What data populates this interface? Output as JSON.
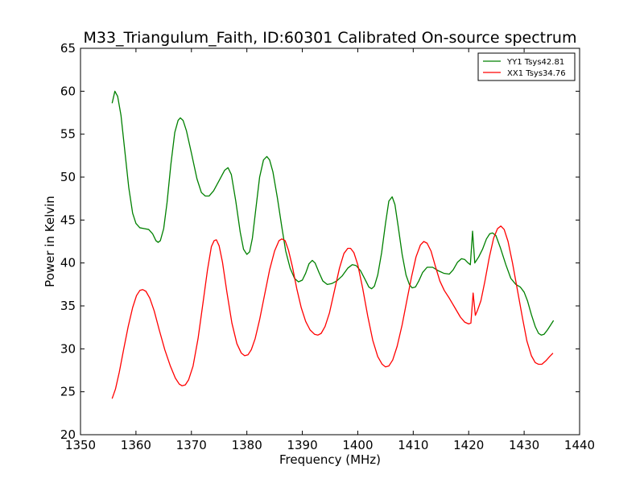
{
  "chart_data": {
    "type": "line",
    "title": "M33_Triangulum_Faith, ID:60301 Calibrated On-source spectrum",
    "xlabel": "Frequency (MHz)",
    "ylabel": "Power in Kelvin",
    "xlim": [
      1350,
      1440
    ],
    "ylim": [
      20,
      65
    ],
    "x_ticks": [
      1350,
      1360,
      1370,
      1380,
      1390,
      1400,
      1410,
      1420,
      1430,
      1440
    ],
    "y_ticks": [
      20,
      25,
      30,
      35,
      40,
      45,
      50,
      55,
      60,
      65
    ],
    "grid": false,
    "legend_position": "top-right",
    "series": [
      {
        "name": "YY1 Tsys42.81",
        "color": "#008000",
        "points": [
          [
            1355.7,
            58.6
          ],
          [
            1356.2,
            60.0
          ],
          [
            1356.7,
            59.4
          ],
          [
            1357.3,
            57.2
          ],
          [
            1358.0,
            53.0
          ],
          [
            1358.7,
            48.8
          ],
          [
            1359.4,
            45.8
          ],
          [
            1360.0,
            44.6
          ],
          [
            1360.7,
            44.1
          ],
          [
            1361.5,
            44.0
          ],
          [
            1362.3,
            43.9
          ],
          [
            1363.0,
            43.4
          ],
          [
            1363.6,
            42.6
          ],
          [
            1364.0,
            42.4
          ],
          [
            1364.4,
            42.6
          ],
          [
            1365.0,
            44.0
          ],
          [
            1365.6,
            47.0
          ],
          [
            1366.3,
            51.5
          ],
          [
            1367.0,
            55.2
          ],
          [
            1367.6,
            56.6
          ],
          [
            1368.0,
            56.9
          ],
          [
            1368.5,
            56.6
          ],
          [
            1369.1,
            55.4
          ],
          [
            1370.0,
            52.8
          ],
          [
            1371.0,
            49.8
          ],
          [
            1371.8,
            48.2
          ],
          [
            1372.5,
            47.8
          ],
          [
            1373.2,
            47.8
          ],
          [
            1374.0,
            48.4
          ],
          [
            1375.0,
            49.6
          ],
          [
            1376.0,
            50.8
          ],
          [
            1376.6,
            51.1
          ],
          [
            1377.2,
            50.3
          ],
          [
            1378.0,
            47.2
          ],
          [
            1378.8,
            43.6
          ],
          [
            1379.4,
            41.6
          ],
          [
            1380.0,
            41.0
          ],
          [
            1380.5,
            41.3
          ],
          [
            1381.0,
            42.9
          ],
          [
            1381.6,
            46.2
          ],
          [
            1382.3,
            50.0
          ],
          [
            1383.0,
            52.0
          ],
          [
            1383.6,
            52.4
          ],
          [
            1384.1,
            52.0
          ],
          [
            1384.7,
            50.6
          ],
          [
            1385.5,
            47.6
          ],
          [
            1386.3,
            44.2
          ],
          [
            1387.0,
            41.4
          ],
          [
            1387.8,
            39.4
          ],
          [
            1388.6,
            38.2
          ],
          [
            1389.3,
            37.8
          ],
          [
            1390.0,
            38.0
          ],
          [
            1390.6,
            38.8
          ],
          [
            1391.2,
            39.9
          ],
          [
            1391.8,
            40.3
          ],
          [
            1392.3,
            40.0
          ],
          [
            1393.0,
            38.9
          ],
          [
            1393.7,
            37.9
          ],
          [
            1394.5,
            37.5
          ],
          [
            1395.3,
            37.6
          ],
          [
            1396.2,
            37.9
          ],
          [
            1397.2,
            38.5
          ],
          [
            1398.2,
            39.4
          ],
          [
            1399.0,
            39.8
          ],
          [
            1399.7,
            39.7
          ],
          [
            1400.5,
            39.1
          ],
          [
            1401.3,
            38.1
          ],
          [
            1402.0,
            37.2
          ],
          [
            1402.5,
            37.0
          ],
          [
            1403.0,
            37.3
          ],
          [
            1403.6,
            38.6
          ],
          [
            1404.3,
            41.2
          ],
          [
            1405.0,
            44.6
          ],
          [
            1405.6,
            47.2
          ],
          [
            1406.2,
            47.7
          ],
          [
            1406.7,
            46.8
          ],
          [
            1407.3,
            44.2
          ],
          [
            1408.0,
            41.0
          ],
          [
            1408.7,
            38.6
          ],
          [
            1409.3,
            37.5
          ],
          [
            1409.8,
            37.1
          ],
          [
            1410.4,
            37.2
          ],
          [
            1411.0,
            37.9
          ],
          [
            1411.7,
            38.9
          ],
          [
            1412.5,
            39.5
          ],
          [
            1413.5,
            39.5
          ],
          [
            1414.5,
            39.1
          ],
          [
            1415.5,
            38.8
          ],
          [
            1416.5,
            38.7
          ],
          [
            1417.2,
            39.2
          ],
          [
            1418.0,
            40.1
          ],
          [
            1418.7,
            40.5
          ],
          [
            1419.3,
            40.4
          ],
          [
            1419.9,
            40.0
          ],
          [
            1420.3,
            39.8
          ],
          [
            1420.7,
            43.7
          ],
          [
            1421.1,
            40.0
          ],
          [
            1421.8,
            40.7
          ],
          [
            1422.5,
            41.6
          ],
          [
            1423.2,
            42.8
          ],
          [
            1423.8,
            43.4
          ],
          [
            1424.3,
            43.5
          ],
          [
            1424.9,
            43.2
          ],
          [
            1425.7,
            41.8
          ],
          [
            1426.7,
            39.8
          ],
          [
            1427.6,
            38.2
          ],
          [
            1428.5,
            37.5
          ],
          [
            1429.3,
            37.2
          ],
          [
            1430.0,
            36.6
          ],
          [
            1430.6,
            35.6
          ],
          [
            1431.3,
            34.0
          ],
          [
            1432.0,
            32.6
          ],
          [
            1432.6,
            31.8
          ],
          [
            1433.1,
            31.6
          ],
          [
            1433.6,
            31.7
          ],
          [
            1434.2,
            32.2
          ],
          [
            1434.8,
            32.8
          ],
          [
            1435.3,
            33.3
          ]
        ]
      },
      {
        "name": "XX1 Tsys34.76",
        "color": "#ff0000",
        "points": [
          [
            1355.7,
            24.2
          ],
          [
            1356.3,
            25.3
          ],
          [
            1357.0,
            27.3
          ],
          [
            1357.8,
            30.0
          ],
          [
            1358.6,
            32.6
          ],
          [
            1359.4,
            34.8
          ],
          [
            1360.1,
            36.2
          ],
          [
            1360.7,
            36.8
          ],
          [
            1361.2,
            36.9
          ],
          [
            1361.8,
            36.7
          ],
          [
            1362.5,
            35.9
          ],
          [
            1363.3,
            34.4
          ],
          [
            1364.2,
            32.2
          ],
          [
            1365.2,
            29.9
          ],
          [
            1366.2,
            28.0
          ],
          [
            1367.1,
            26.6
          ],
          [
            1367.8,
            25.9
          ],
          [
            1368.3,
            25.7
          ],
          [
            1368.9,
            25.8
          ],
          [
            1369.5,
            26.4
          ],
          [
            1370.3,
            28.0
          ],
          [
            1371.2,
            31.2
          ],
          [
            1372.1,
            35.4
          ],
          [
            1372.9,
            39.2
          ],
          [
            1373.6,
            41.9
          ],
          [
            1374.1,
            42.6
          ],
          [
            1374.5,
            42.7
          ],
          [
            1375.0,
            42.0
          ],
          [
            1375.6,
            40.1
          ],
          [
            1376.4,
            36.6
          ],
          [
            1377.3,
            33.0
          ],
          [
            1378.2,
            30.6
          ],
          [
            1379.0,
            29.5
          ],
          [
            1379.6,
            29.2
          ],
          [
            1380.2,
            29.3
          ],
          [
            1380.8,
            29.9
          ],
          [
            1381.5,
            31.2
          ],
          [
            1382.3,
            33.4
          ],
          [
            1383.2,
            36.3
          ],
          [
            1384.1,
            39.2
          ],
          [
            1385.0,
            41.4
          ],
          [
            1385.8,
            42.6
          ],
          [
            1386.3,
            42.8
          ],
          [
            1386.9,
            42.6
          ],
          [
            1387.5,
            41.5
          ],
          [
            1388.2,
            39.6
          ],
          [
            1389.0,
            37.0
          ],
          [
            1389.8,
            34.8
          ],
          [
            1390.6,
            33.2
          ],
          [
            1391.4,
            32.2
          ],
          [
            1392.2,
            31.7
          ],
          [
            1392.8,
            31.6
          ],
          [
            1393.4,
            31.8
          ],
          [
            1394.1,
            32.6
          ],
          [
            1394.9,
            34.2
          ],
          [
            1395.8,
            36.8
          ],
          [
            1396.7,
            39.4
          ],
          [
            1397.5,
            41.1
          ],
          [
            1398.2,
            41.7
          ],
          [
            1398.7,
            41.7
          ],
          [
            1399.3,
            41.2
          ],
          [
            1400.0,
            39.8
          ],
          [
            1400.9,
            37.0
          ],
          [
            1401.8,
            33.8
          ],
          [
            1402.7,
            31.0
          ],
          [
            1403.6,
            29.1
          ],
          [
            1404.4,
            28.2
          ],
          [
            1405.0,
            27.9
          ],
          [
            1405.6,
            28.0
          ],
          [
            1406.3,
            28.7
          ],
          [
            1407.1,
            30.3
          ],
          [
            1408.0,
            32.8
          ],
          [
            1408.9,
            35.8
          ],
          [
            1409.7,
            38.4
          ],
          [
            1410.5,
            40.7
          ],
          [
            1411.3,
            42.1
          ],
          [
            1411.9,
            42.5
          ],
          [
            1412.5,
            42.3
          ],
          [
            1413.2,
            41.4
          ],
          [
            1414.0,
            39.6
          ],
          [
            1414.8,
            37.9
          ],
          [
            1415.6,
            36.8
          ],
          [
            1416.5,
            35.9
          ],
          [
            1417.5,
            34.8
          ],
          [
            1418.5,
            33.7
          ],
          [
            1419.3,
            33.1
          ],
          [
            1420.0,
            32.9
          ],
          [
            1420.4,
            33.0
          ],
          [
            1420.8,
            36.5
          ],
          [
            1421.2,
            33.9
          ],
          [
            1421.6,
            34.5
          ],
          [
            1422.2,
            35.6
          ],
          [
            1422.9,
            37.8
          ],
          [
            1423.7,
            40.6
          ],
          [
            1424.5,
            42.9
          ],
          [
            1425.2,
            44.0
          ],
          [
            1425.8,
            44.3
          ],
          [
            1426.4,
            43.9
          ],
          [
            1427.1,
            42.5
          ],
          [
            1427.9,
            40.0
          ],
          [
            1428.8,
            36.8
          ],
          [
            1429.7,
            33.6
          ],
          [
            1430.5,
            30.9
          ],
          [
            1431.3,
            29.2
          ],
          [
            1432.0,
            28.4
          ],
          [
            1432.6,
            28.2
          ],
          [
            1433.2,
            28.2
          ],
          [
            1433.9,
            28.6
          ],
          [
            1434.6,
            29.1
          ],
          [
            1435.2,
            29.5
          ]
        ]
      }
    ]
  }
}
